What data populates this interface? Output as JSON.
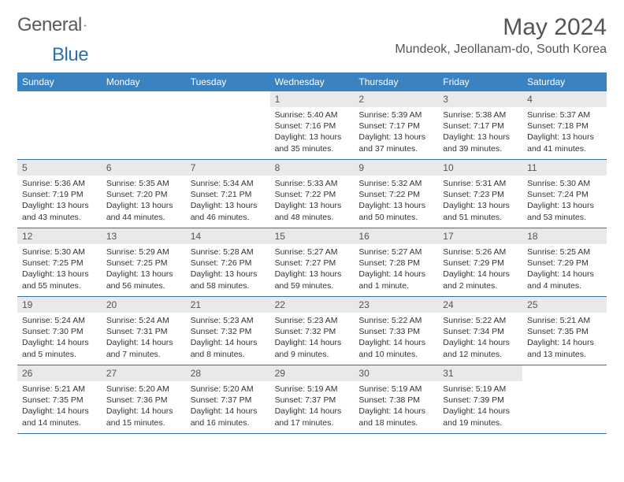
{
  "logo": {
    "text_a": "General",
    "text_b": "Blue"
  },
  "header": {
    "month_title": "May 2024",
    "location": "Mundeok, Jeollanam-do, South Korea"
  },
  "colors": {
    "header_bg": "#3b83c0",
    "header_text": "#ffffff",
    "daynum_bg": "#e9e9e9",
    "week_border": "#3b6fa0",
    "body_text": "#333333",
    "title_text": "#555555"
  },
  "weekdays": [
    "Sunday",
    "Monday",
    "Tuesday",
    "Wednesday",
    "Thursday",
    "Friday",
    "Saturday"
  ],
  "weeks": [
    [
      {
        "empty": true
      },
      {
        "empty": true
      },
      {
        "empty": true
      },
      {
        "num": "1",
        "sunrise": "Sunrise: 5:40 AM",
        "sunset": "Sunset: 7:16 PM",
        "daylight": "Daylight: 13 hours and 35 minutes."
      },
      {
        "num": "2",
        "sunrise": "Sunrise: 5:39 AM",
        "sunset": "Sunset: 7:17 PM",
        "daylight": "Daylight: 13 hours and 37 minutes."
      },
      {
        "num": "3",
        "sunrise": "Sunrise: 5:38 AM",
        "sunset": "Sunset: 7:17 PM",
        "daylight": "Daylight: 13 hours and 39 minutes."
      },
      {
        "num": "4",
        "sunrise": "Sunrise: 5:37 AM",
        "sunset": "Sunset: 7:18 PM",
        "daylight": "Daylight: 13 hours and 41 minutes."
      }
    ],
    [
      {
        "num": "5",
        "sunrise": "Sunrise: 5:36 AM",
        "sunset": "Sunset: 7:19 PM",
        "daylight": "Daylight: 13 hours and 43 minutes."
      },
      {
        "num": "6",
        "sunrise": "Sunrise: 5:35 AM",
        "sunset": "Sunset: 7:20 PM",
        "daylight": "Daylight: 13 hours and 44 minutes."
      },
      {
        "num": "7",
        "sunrise": "Sunrise: 5:34 AM",
        "sunset": "Sunset: 7:21 PM",
        "daylight": "Daylight: 13 hours and 46 minutes."
      },
      {
        "num": "8",
        "sunrise": "Sunrise: 5:33 AM",
        "sunset": "Sunset: 7:22 PM",
        "daylight": "Daylight: 13 hours and 48 minutes."
      },
      {
        "num": "9",
        "sunrise": "Sunrise: 5:32 AM",
        "sunset": "Sunset: 7:22 PM",
        "daylight": "Daylight: 13 hours and 50 minutes."
      },
      {
        "num": "10",
        "sunrise": "Sunrise: 5:31 AM",
        "sunset": "Sunset: 7:23 PM",
        "daylight": "Daylight: 13 hours and 51 minutes."
      },
      {
        "num": "11",
        "sunrise": "Sunrise: 5:30 AM",
        "sunset": "Sunset: 7:24 PM",
        "daylight": "Daylight: 13 hours and 53 minutes."
      }
    ],
    [
      {
        "num": "12",
        "sunrise": "Sunrise: 5:30 AM",
        "sunset": "Sunset: 7:25 PM",
        "daylight": "Daylight: 13 hours and 55 minutes."
      },
      {
        "num": "13",
        "sunrise": "Sunrise: 5:29 AM",
        "sunset": "Sunset: 7:25 PM",
        "daylight": "Daylight: 13 hours and 56 minutes."
      },
      {
        "num": "14",
        "sunrise": "Sunrise: 5:28 AM",
        "sunset": "Sunset: 7:26 PM",
        "daylight": "Daylight: 13 hours and 58 minutes."
      },
      {
        "num": "15",
        "sunrise": "Sunrise: 5:27 AM",
        "sunset": "Sunset: 7:27 PM",
        "daylight": "Daylight: 13 hours and 59 minutes."
      },
      {
        "num": "16",
        "sunrise": "Sunrise: 5:27 AM",
        "sunset": "Sunset: 7:28 PM",
        "daylight": "Daylight: 14 hours and 1 minute."
      },
      {
        "num": "17",
        "sunrise": "Sunrise: 5:26 AM",
        "sunset": "Sunset: 7:29 PM",
        "daylight": "Daylight: 14 hours and 2 minutes."
      },
      {
        "num": "18",
        "sunrise": "Sunrise: 5:25 AM",
        "sunset": "Sunset: 7:29 PM",
        "daylight": "Daylight: 14 hours and 4 minutes."
      }
    ],
    [
      {
        "num": "19",
        "sunrise": "Sunrise: 5:24 AM",
        "sunset": "Sunset: 7:30 PM",
        "daylight": "Daylight: 14 hours and 5 minutes."
      },
      {
        "num": "20",
        "sunrise": "Sunrise: 5:24 AM",
        "sunset": "Sunset: 7:31 PM",
        "daylight": "Daylight: 14 hours and 7 minutes."
      },
      {
        "num": "21",
        "sunrise": "Sunrise: 5:23 AM",
        "sunset": "Sunset: 7:32 PM",
        "daylight": "Daylight: 14 hours and 8 minutes."
      },
      {
        "num": "22",
        "sunrise": "Sunrise: 5:23 AM",
        "sunset": "Sunset: 7:32 PM",
        "daylight": "Daylight: 14 hours and 9 minutes."
      },
      {
        "num": "23",
        "sunrise": "Sunrise: 5:22 AM",
        "sunset": "Sunset: 7:33 PM",
        "daylight": "Daylight: 14 hours and 10 minutes."
      },
      {
        "num": "24",
        "sunrise": "Sunrise: 5:22 AM",
        "sunset": "Sunset: 7:34 PM",
        "daylight": "Daylight: 14 hours and 12 minutes."
      },
      {
        "num": "25",
        "sunrise": "Sunrise: 5:21 AM",
        "sunset": "Sunset: 7:35 PM",
        "daylight": "Daylight: 14 hours and 13 minutes."
      }
    ],
    [
      {
        "num": "26",
        "sunrise": "Sunrise: 5:21 AM",
        "sunset": "Sunset: 7:35 PM",
        "daylight": "Daylight: 14 hours and 14 minutes."
      },
      {
        "num": "27",
        "sunrise": "Sunrise: 5:20 AM",
        "sunset": "Sunset: 7:36 PM",
        "daylight": "Daylight: 14 hours and 15 minutes."
      },
      {
        "num": "28",
        "sunrise": "Sunrise: 5:20 AM",
        "sunset": "Sunset: 7:37 PM",
        "daylight": "Daylight: 14 hours and 16 minutes."
      },
      {
        "num": "29",
        "sunrise": "Sunrise: 5:19 AM",
        "sunset": "Sunset: 7:37 PM",
        "daylight": "Daylight: 14 hours and 17 minutes."
      },
      {
        "num": "30",
        "sunrise": "Sunrise: 5:19 AM",
        "sunset": "Sunset: 7:38 PM",
        "daylight": "Daylight: 14 hours and 18 minutes."
      },
      {
        "num": "31",
        "sunrise": "Sunrise: 5:19 AM",
        "sunset": "Sunset: 7:39 PM",
        "daylight": "Daylight: 14 hours and 19 minutes."
      },
      {
        "empty": true
      }
    ]
  ]
}
